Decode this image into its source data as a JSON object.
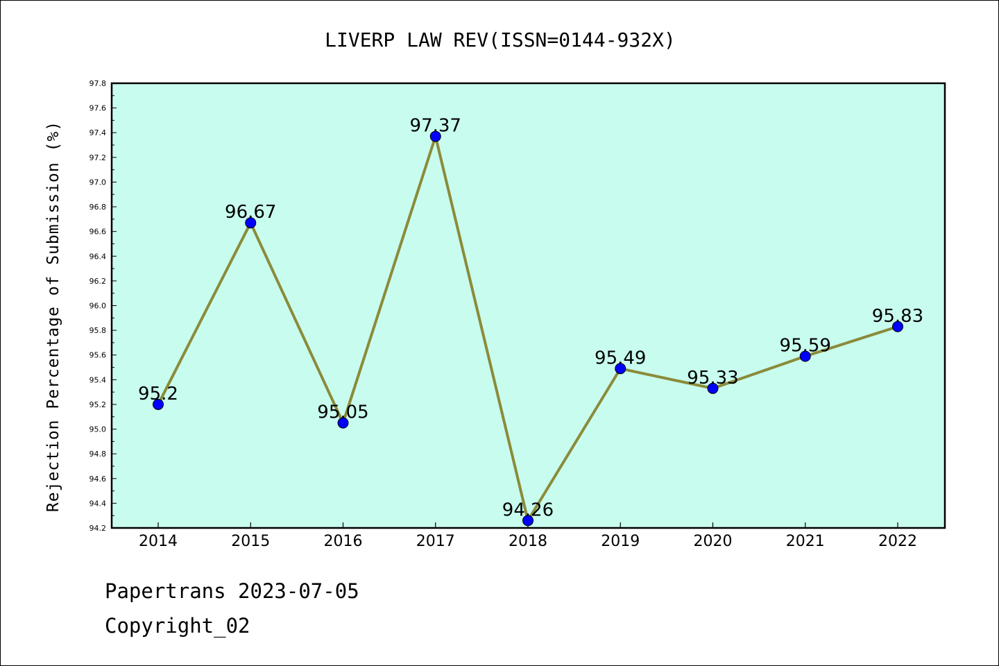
{
  "colors": {
    "plot_background": "#c8fcee",
    "line": "#8b8b3a",
    "marker": "#0000ff"
  },
  "chart_data": {
    "type": "line",
    "title": "LIVERP LAW REV(ISSN=0144-932X)",
    "xlabel": "",
    "ylabel": "Rejection Percentage of Submission (%)",
    "categories": [
      "2014",
      "2015",
      "2016",
      "2017",
      "2018",
      "2019",
      "2020",
      "2021",
      "2022"
    ],
    "values": [
      95.2,
      96.67,
      95.05,
      97.37,
      94.26,
      95.49,
      95.33,
      95.59,
      95.83
    ],
    "data_labels": [
      "95.2",
      "96.67",
      "95.05",
      "97.37",
      "94.26",
      "95.49",
      "95.33",
      "95.59",
      "95.83"
    ],
    "ylim": [
      94.2,
      97.8
    ],
    "yticks": [
      "94.2",
      "94.4",
      "94.6",
      "94.8",
      "95.0",
      "95.2",
      "95.4",
      "95.6",
      "95.8",
      "96.0",
      "96.2",
      "96.4",
      "96.6",
      "96.8",
      "97.0",
      "97.2",
      "97.4",
      "97.6",
      "97.8"
    ],
    "grid": false,
    "legend": "none"
  },
  "footer": {
    "line1": "Papertrans 2023-07-05",
    "line2": "Copyright_02"
  }
}
